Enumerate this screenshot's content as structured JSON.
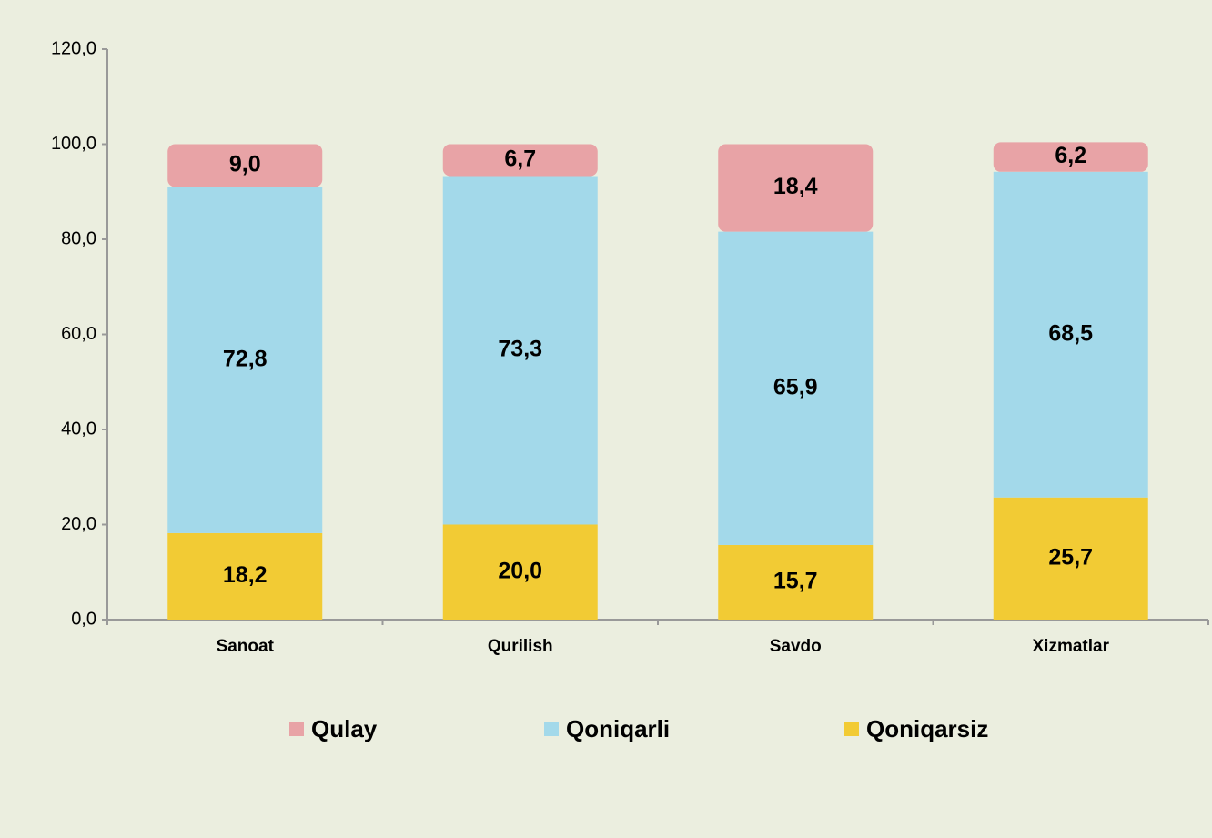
{
  "chart_data": {
    "type": "stacked_bar",
    "categories": [
      "Sanoat",
      "Qurilish",
      "Savdo",
      "Xizmatlar"
    ],
    "series": [
      {
        "name": "Qulay",
        "color": "#e8a3a6",
        "values": [
          9.0,
          6.7,
          18.4,
          6.2
        ],
        "value_labels": [
          "9,0",
          "6,7",
          "18,4",
          "6,2"
        ]
      },
      {
        "name": "Qoniqarli",
        "color": "#a3d9ea",
        "values": [
          72.8,
          73.3,
          65.9,
          68.5
        ],
        "value_labels": [
          "72,8",
          "73,3",
          "65,9",
          "68,5"
        ]
      },
      {
        "name": "Qoniqarsiz",
        "color": "#f2cb34",
        "values": [
          18.2,
          20.0,
          15.7,
          25.7
        ],
        "value_labels": [
          "18,2",
          "20,0",
          "15,7",
          "25,7"
        ]
      }
    ],
    "ylim": [
      0,
      120
    ],
    "yticks": [
      {
        "value": 0,
        "label": "0,0"
      },
      {
        "value": 20,
        "label": "20,0"
      },
      {
        "value": 40,
        "label": "40,0"
      },
      {
        "value": 60,
        "label": "60,0"
      },
      {
        "value": 80,
        "label": "80,0"
      },
      {
        "value": 100,
        "label": "100,0"
      },
      {
        "value": 120,
        "label": "120,0"
      }
    ],
    "legend": "bottom"
  }
}
